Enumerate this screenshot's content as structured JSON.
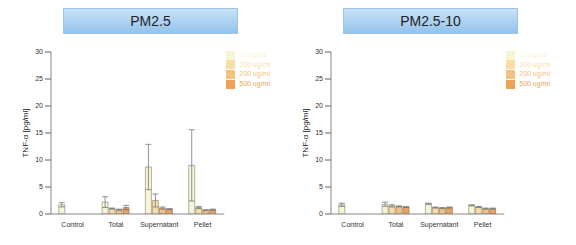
{
  "chart_data": [
    {
      "type": "bar",
      "title": "PM2.5",
      "y_label": "TNF-α [pg/ml]",
      "categories": [
        "Control",
        "Total",
        "Supernatant",
        "Pellet"
      ],
      "ylim": [
        0,
        30
      ],
      "yticks": [
        0,
        5,
        10,
        15,
        20,
        25,
        30
      ],
      "legend": "top-right",
      "series": [
        {
          "name": "10 ug/ml",
          "color": "#f8f6d2",
          "values": [
            1.7,
            2.2,
            8.7,
            9.0
          ],
          "errors": [
            0.4,
            1.0,
            4.2,
            6.6
          ]
        },
        {
          "name": "100 ug/ml",
          "color": "#f8dea6",
          "values": [
            null,
            1.0,
            2.5,
            1.2
          ],
          "errors": [
            null,
            0.1,
            1.2,
            0.2
          ]
        },
        {
          "name": "200 ug/ml",
          "color": "#f4c27e",
          "values": [
            null,
            0.8,
            1.1,
            0.7
          ],
          "errors": [
            null,
            0.1,
            0.2,
            0.1
          ]
        },
        {
          "name": "500 ug/ml",
          "color": "#eda258",
          "values": [
            null,
            1.2,
            0.9,
            0.8
          ],
          "errors": [
            null,
            0.4,
            0.1,
            0.1
          ]
        }
      ]
    },
    {
      "type": "bar",
      "title": "PM2.5-10",
      "y_label": "TNF-α [pg/ml]",
      "categories": [
        "Control",
        "Total",
        "Supernatant",
        "Pellet"
      ],
      "ylim": [
        0,
        30
      ],
      "yticks": [
        0,
        5,
        10,
        15,
        20,
        25,
        30
      ],
      "legend": "top-right",
      "series": [
        {
          "name": "10 ug/ml",
          "color": "#f8f6d2",
          "values": [
            1.7,
            1.8,
            1.9,
            1.6
          ],
          "errors": [
            0.3,
            0.4,
            0.1,
            0.1
          ]
        },
        {
          "name": "100 ug/ml",
          "color": "#f8dea6",
          "values": [
            null,
            1.5,
            1.2,
            1.3
          ],
          "errors": [
            null,
            0.2,
            0.1,
            0.1
          ]
        },
        {
          "name": "200 ug/ml",
          "color": "#f4c27e",
          "values": [
            null,
            1.4,
            1.1,
            1.0
          ],
          "errors": [
            null,
            0.1,
            0.1,
            0.1
          ]
        },
        {
          "name": "500 ug/ml",
          "color": "#eda258",
          "values": [
            null,
            1.3,
            1.2,
            1.0
          ],
          "errors": [
            null,
            0.1,
            0.1,
            0.1
          ]
        }
      ]
    }
  ]
}
